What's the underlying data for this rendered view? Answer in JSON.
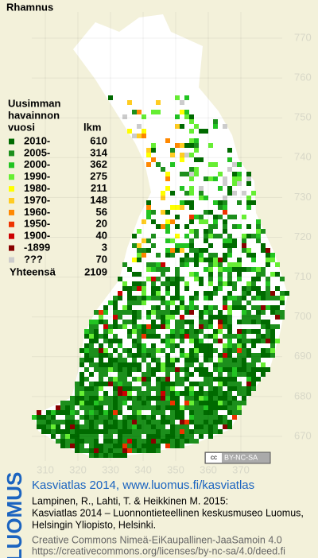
{
  "title": "Rhamnus",
  "legend": {
    "heading": [
      "Uusimman",
      "havainnon"
    ],
    "col_year": "vuosi",
    "col_count": "lkm",
    "rows": [
      {
        "label": "2010-",
        "count": 610,
        "color": "#006a00"
      },
      {
        "label": "2005-",
        "count": 314,
        "color": "#1c8f1c"
      },
      {
        "label": "2000-",
        "count": 362,
        "color": "#22c422"
      },
      {
        "label": "1990-",
        "count": 275,
        "color": "#66ee33"
      },
      {
        "label": "1980-",
        "count": 211,
        "color": "#ffff00"
      },
      {
        "label": "1970-",
        "count": 148,
        "color": "#ffcc22"
      },
      {
        "label": "1960-",
        "count": 56,
        "color": "#ff8800"
      },
      {
        "label": "1950-",
        "count": 20,
        "color": "#ee3300"
      },
      {
        "label": "1900-",
        "count": 40,
        "color": "#cc0000"
      },
      {
        "label": "-1899",
        "count": 3,
        "color": "#880000"
      },
      {
        "label": "???",
        "count": 70,
        "color": "#cccccc"
      }
    ],
    "total_label": "Yhteensä",
    "total": 2109
  },
  "map": {
    "northing_labels": [
      770,
      760,
      750,
      740,
      730,
      720,
      710,
      700,
      690,
      680,
      670
    ],
    "easting_labels": [
      310,
      320,
      330,
      340,
      350,
      360,
      370
    ],
    "license_badge": "BY-NC-SA"
  },
  "footer": {
    "logo": "LUOMUS",
    "site": "Kasviatlas 2014, www.luomus.fi/kasviatlas",
    "citation": [
      "Lampinen, R., Lahti, T. & Heikkinen M. 2015:",
      "Kasviatlas 2014 – Luonnontieteellinen keskusmuseo Luomus,",
      "Helsingin Yliopisto, Helsinki."
    ],
    "license": [
      "Creative Commons Nimeä-EiKaupallinen-JaaSamoin 4.0",
      "https://creativecommons.org/licenses/by-nc-sa/4.0/deed.fi"
    ]
  }
}
